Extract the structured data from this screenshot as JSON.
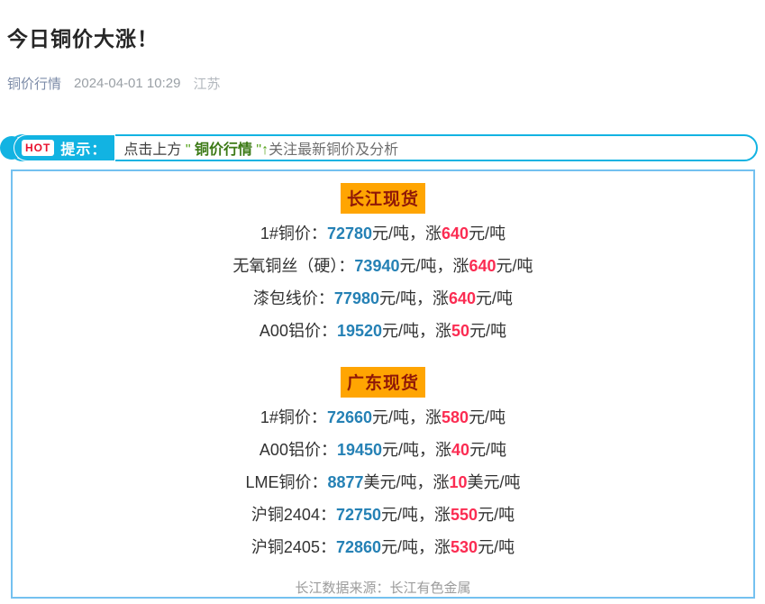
{
  "article": {
    "title": "今日铜价大涨！",
    "byline": {
      "account": "铜价行情",
      "date": "2024-04-01 10:29",
      "location": "江苏"
    }
  },
  "tip_banner": {
    "hot_label": "HOT",
    "tip_label": "提示：",
    "text": {
      "prefix": "点击上方 ",
      "quote_open": "\" ",
      "account": "铜价行情",
      "quote_close": " \"",
      "arrow": "↑",
      "suffix": "关注最新铜价及分析"
    }
  },
  "price_box": {
    "sections": [
      {
        "heading": "长江现货",
        "rows": [
          {
            "label": "1#铜价：",
            "price": "72780",
            "mid": "元/吨，涨",
            "change": "640",
            "tail": "元/吨"
          },
          {
            "label": "无氧铜丝（硬）：",
            "price": "73940",
            "mid": "元/吨，涨",
            "change": "640",
            "tail": "元/吨"
          },
          {
            "label": "漆包线价：",
            "price": "77980",
            "mid": "元/吨，涨",
            "change": "640",
            "tail": "元/吨"
          },
          {
            "label": "A00铝价：",
            "price": "19520",
            "mid": "元/吨，涨",
            "change": "50",
            "tail": "元/吨"
          }
        ]
      },
      {
        "heading": "广东现货",
        "rows": [
          {
            "label": "1#铜价：",
            "price": "72660",
            "mid": "元/吨，涨",
            "change": "580",
            "tail": "元/吨"
          },
          {
            "label": "A00铝价：",
            "price": "19450",
            "mid": "元/吨，涨",
            "change": "40",
            "tail": "元/吨"
          },
          {
            "label": "LME铜价：",
            "price": "8877",
            "mid": "美元/吨，涨",
            "change": "10",
            "tail": "美元/吨"
          },
          {
            "label": "沪铜2404：",
            "price": "72750",
            "mid": "元/吨，涨",
            "change": "550",
            "tail": "元/吨"
          },
          {
            "label": "沪铜2405：",
            "price": "72860",
            "mid": "元/吨，涨",
            "change": "530",
            "tail": "元/吨"
          }
        ]
      }
    ],
    "source_note": "长江数据来源：长江有色金属"
  },
  "colors": {
    "banner_cyan": "#12b3e2",
    "box_border_blue": "#74c1f0",
    "heading_bg_orange": "#ffa502",
    "heading_text_dark_red": "#8f1808",
    "price_blue": "#2581b5",
    "change_red": "#fb2c52",
    "hot_red": "#e8112d",
    "account_link_blue": "#7d8ca8"
  }
}
